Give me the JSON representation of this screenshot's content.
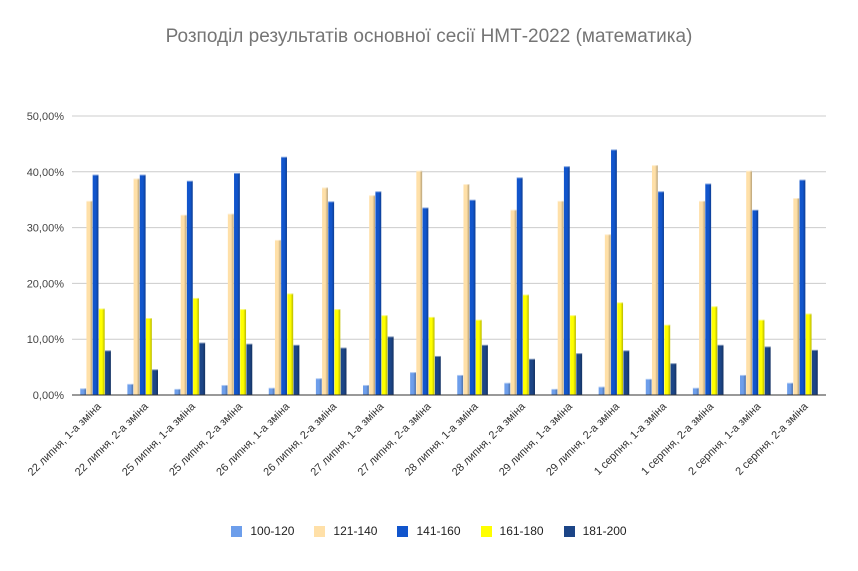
{
  "chart_data": {
    "type": "bar",
    "title": "Розподіл результатів основної сесії НМТ-2022 (математика)",
    "xlabel": "",
    "ylabel": "",
    "ylim": [
      0,
      50
    ],
    "y_ticks": [
      "0,00%",
      "10,00%",
      "20,00%",
      "30,00%",
      "40,00%",
      "50,00%"
    ],
    "grid": true,
    "legend_position": "bottom",
    "categories": [
      "22 липня, 1-а зміна",
      "22 липня, 2-а зміна",
      "25 липня, 1-а зміна",
      "25 липня, 2-а зміна",
      "26 липня, 1-а зміна",
      "26 липня, 2-а зміна",
      "27 липня, 1-а зміна",
      "27 липня, 2-а зміна",
      "28 липня, 1-а зміна",
      "28 липня, 2-а зміна",
      "29 липня, 1-а зміна",
      "29 липня, 2-а зміна",
      "1 серпня, 1-а зміна",
      "1 серпня, 2-а зміна",
      "2 серпня, 1-а зміна",
      "2 серпня, 2-а зміна"
    ],
    "series": [
      {
        "name": "100-120",
        "color": "#6d9eeb",
        "values": [
          1.2,
          2.0,
          1.1,
          1.8,
          1.3,
          3.0,
          1.8,
          4.1,
          3.6,
          2.2,
          1.1,
          1.5,
          2.9,
          1.3,
          3.6,
          2.2
        ]
      },
      {
        "name": "121-140",
        "color": "#ffe0a8",
        "values": [
          34.8,
          38.8,
          32.3,
          32.5,
          27.8,
          37.2,
          35.8,
          40.2,
          37.8,
          33.2,
          34.8,
          28.8,
          41.2,
          34.8,
          40.2,
          35.3
        ]
      },
      {
        "name": "141-160",
        "color": "#1155cc",
        "values": [
          39.5,
          39.5,
          38.4,
          39.8,
          42.7,
          34.7,
          36.5,
          33.6,
          35.0,
          39.0,
          41.0,
          44.0,
          36.5,
          37.9,
          33.2,
          38.6
        ]
      },
      {
        "name": "161-180",
        "color": "#ffff00",
        "values": [
          15.5,
          13.8,
          17.4,
          15.4,
          18.2,
          15.4,
          14.3,
          14.0,
          13.5,
          18.0,
          14.3,
          16.6,
          12.6,
          15.9,
          13.5,
          14.6
        ]
      },
      {
        "name": "181-200",
        "color": "#1c4587",
        "values": [
          8.0,
          4.6,
          9.4,
          9.2,
          9.0,
          8.5,
          10.5,
          7.0,
          9.0,
          6.5,
          7.5,
          8.0,
          5.7,
          9.0,
          8.7,
          8.1
        ]
      }
    ]
  }
}
